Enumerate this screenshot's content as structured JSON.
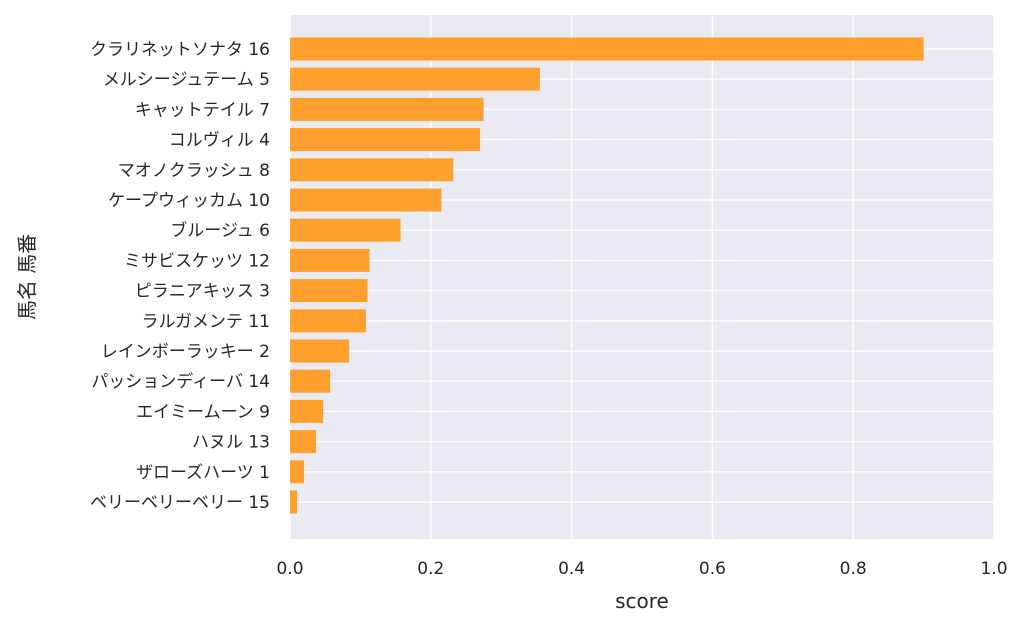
{
  "chart_data": {
    "type": "bar",
    "orientation": "horizontal",
    "categories": [
      "クラリネットソナタ 16",
      "メルシージュテーム 5",
      "キャットテイル 7",
      "コルヴィル 4",
      "マオノクラッシュ 8",
      "ケープウィッカム 10",
      "ブルージュ 6",
      "ミサビスケッツ 12",
      "ピラニアキッス 3",
      "ラルガメンテ 11",
      "レインボーラッキー 2",
      "パッションディーバ 14",
      "エイミームーン 9",
      "ハヌル 13",
      "ザローズハーツ 1",
      "ベリーベリーベリー 15"
    ],
    "values": [
      0.9,
      0.355,
      0.275,
      0.27,
      0.232,
      0.215,
      0.157,
      0.113,
      0.11,
      0.108,
      0.084,
      0.057,
      0.047,
      0.037,
      0.02,
      0.01
    ],
    "xlabel": "score",
    "ylabel": "馬名 馬番",
    "xlim": [
      0,
      1.0
    ],
    "xticks": [
      0,
      0.2,
      0.4,
      0.6,
      0.8,
      1.0
    ],
    "xtick_labels": [
      "0.0",
      "0.2",
      "0.4",
      "0.6",
      "0.8",
      "1.0"
    ],
    "grid": true,
    "colors": {
      "bar": "#ff9f2e",
      "plot_background": "#eaeaf2",
      "grid": "#ffffff",
      "text": "#262626"
    }
  }
}
